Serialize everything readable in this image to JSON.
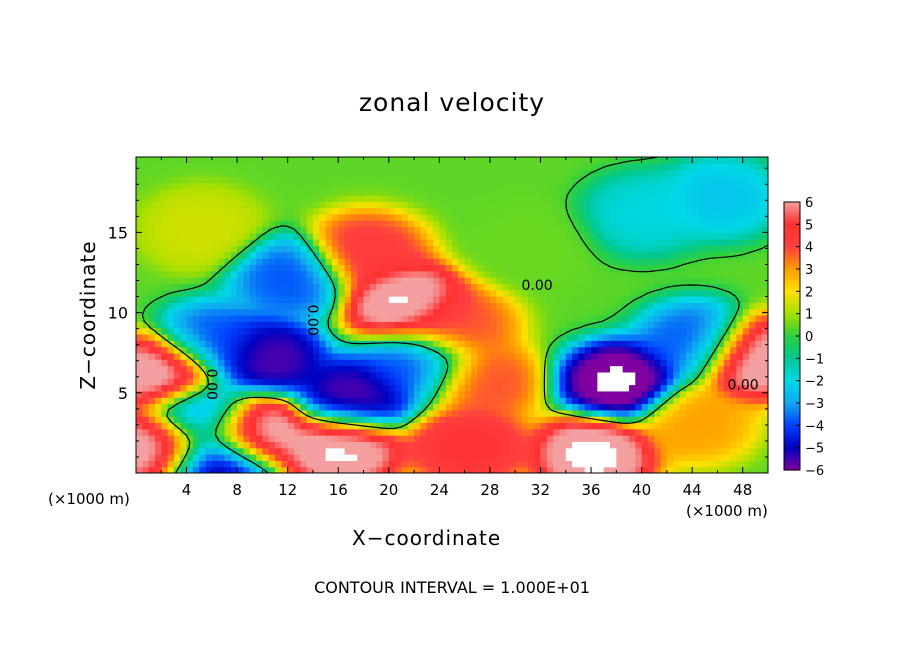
{
  "chart_data": {
    "type": "heatmap",
    "title": "zonal velocity",
    "xlabel": "X−coordinate",
    "ylabel": "Z−coordinate",
    "x_unit_label": "(×1000 m)",
    "x_ticks": [
      4,
      8,
      12,
      16,
      20,
      24,
      28,
      32,
      36,
      40,
      44,
      48
    ],
    "y_ticks": [
      5,
      10,
      15
    ],
    "xlim": [
      0,
      50
    ],
    "ylim": [
      0,
      19.7
    ],
    "colorbar": {
      "ticks": [
        6,
        5,
        4,
        3,
        2,
        1,
        0,
        -1,
        -2,
        -3,
        -4,
        -5,
        -6
      ],
      "tick_labels": [
        "6",
        "5",
        "4",
        "3",
        "2",
        "1",
        "0",
        "−1",
        "−2",
        "−3",
        "−4",
        "−5",
        "−6"
      ],
      "colors": [
        "#f5a0a0",
        "#ff3030",
        "#ff4040",
        "#ff9a00",
        "#ffe000",
        "#a8e000",
        "#2cd040",
        "#00c890",
        "#00d8e8",
        "#10a8f0",
        "#0040ff",
        "#0000c0",
        "#8000a0"
      ],
      "range": [
        -6,
        6
      ],
      "note": "values outside the color range are left white"
    },
    "contour_labels": [
      "0.00",
      "0.00",
      "0.00",
      "0.00"
    ],
    "footer": "CONTOUR INTERVAL = 1.000E+01",
    "field_features": [
      {
        "x": 18,
        "z": 13.5,
        "value": 4.5
      },
      {
        "x": 21,
        "z": 10.5,
        "value": 7
      },
      {
        "x": 25,
        "z": 9,
        "value": 4
      },
      {
        "x": 27,
        "z": 5.5,
        "value": 4
      },
      {
        "x": 10,
        "z": 7,
        "value": -6
      },
      {
        "x": 17,
        "z": 4.5,
        "value": -6
      },
      {
        "x": 22,
        "z": 6.5,
        "value": -4
      },
      {
        "x": 12,
        "z": 12,
        "value": -4
      },
      {
        "x": 6,
        "z": 8,
        "value": -4
      },
      {
        "x": 38,
        "z": 5.5,
        "value": -7
      },
      {
        "x": 44,
        "z": 8,
        "value": -4
      },
      {
        "x": 2,
        "z": 6,
        "value": 7
      },
      {
        "x": 1.5,
        "z": 1.5,
        "value": 7
      },
      {
        "x": 9,
        "z": 2.5,
        "value": 7
      },
      {
        "x": 16,
        "z": 1.5,
        "value": 7
      },
      {
        "x": 26,
        "z": 1.5,
        "value": 5
      },
      {
        "x": 36,
        "z": 1,
        "value": 7
      },
      {
        "x": 48.5,
        "z": 7,
        "value": 7
      },
      {
        "x": 44,
        "z": 3,
        "value": 3
      },
      {
        "x": 5,
        "z": 3.5,
        "value": -4
      },
      {
        "x": 6,
        "z": 0.5,
        "value": -6
      },
      {
        "x": 40,
        "z": 16,
        "value": -2
      },
      {
        "x": 46,
        "z": 17,
        "value": -2.5
      },
      {
        "x": 31,
        "z": 14,
        "value": 0.5
      },
      {
        "x": 5,
        "z": 15,
        "value": 1.5
      }
    ]
  }
}
